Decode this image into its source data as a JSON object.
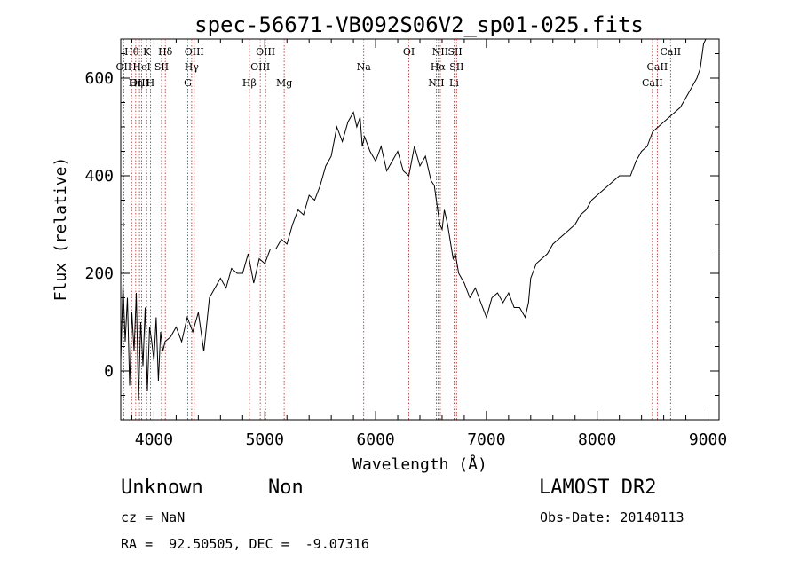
{
  "chart_data": {
    "type": "line",
    "title": "spec-56671-VB092S06V2_sp01-025.fits",
    "xlabel": "Wavelength (Å)",
    "ylabel": "Flux (relative)",
    "xlim": [
      3700,
      9100
    ],
    "ylim": [
      -100,
      680
    ],
    "xticks": [
      4000,
      5000,
      6000,
      7000,
      8000,
      9000
    ],
    "yticks": [
      0,
      200,
      400,
      600
    ],
    "line_color": "#000000",
    "marker_color": "#b22222",
    "series": [
      {
        "x": [
          3700,
          3720,
          3740,
          3760,
          3780,
          3800,
          3820,
          3840,
          3860,
          3880,
          3900,
          3920,
          3940,
          3960,
          3980,
          4000,
          4020,
          4040,
          4060,
          4080,
          4100,
          4150,
          4200,
          4250,
          4300,
          4350,
          4400,
          4450,
          4500,
          4550,
          4600,
          4650,
          4700,
          4750,
          4800,
          4850,
          4900,
          4950,
          5000,
          5050,
          5100,
          5150,
          5200,
          5250,
          5300,
          5350,
          5400,
          5450,
          5500,
          5550,
          5600,
          5650,
          5700,
          5750,
          5800,
          5830,
          5860,
          5880,
          5900,
          5950,
          6000,
          6050,
          6100,
          6150,
          6200,
          6250,
          6300,
          6350,
          6400,
          6450,
          6500,
          6530,
          6560,
          6580,
          6600,
          6620,
          6650,
          6700,
          6720,
          6750,
          6800,
          6850,
          6900,
          6950,
          7000,
          7050,
          7100,
          7150,
          7200,
          7250,
          7300,
          7350,
          7380,
          7400,
          7450,
          7500,
          7550,
          7600,
          7650,
          7700,
          7750,
          7800,
          7850,
          7900,
          7950,
          8000,
          8050,
          8100,
          8150,
          8200,
          8250,
          8300,
          8350,
          8400,
          8450,
          8500,
          8550,
          8600,
          8650,
          8700,
          8750,
          8800,
          8850,
          8900,
          8930,
          8960,
          8980
        ],
        "y": [
          20,
          180,
          60,
          150,
          -30,
          120,
          40,
          160,
          -60,
          100,
          10,
          130,
          -40,
          90,
          60,
          20,
          110,
          -20,
          80,
          40,
          60,
          70,
          90,
          60,
          110,
          80,
          120,
          40,
          150,
          170,
          190,
          170,
          210,
          200,
          200,
          240,
          180,
          230,
          220,
          250,
          250,
          270,
          260,
          300,
          330,
          320,
          360,
          350,
          380,
          420,
          440,
          500,
          470,
          510,
          530,
          500,
          520,
          460,
          480,
          450,
          430,
          460,
          410,
          430,
          450,
          410,
          400,
          460,
          420,
          440,
          390,
          380,
          330,
          300,
          290,
          330,
          300,
          230,
          240,
          200,
          180,
          150,
          170,
          140,
          110,
          150,
          160,
          140,
          160,
          130,
          130,
          110,
          140,
          190,
          220,
          230,
          240,
          260,
          270,
          280,
          290,
          300,
          320,
          330,
          350,
          360,
          370,
          380,
          390,
          400,
          400,
          400,
          430,
          450,
          460,
          490,
          500,
          510,
          520,
          530,
          540,
          560,
          580,
          600,
          620,
          670,
          700
        ]
      }
    ],
    "line_markers": [
      {
        "label": "Hθ",
        "wl": 3798,
        "row": 1
      },
      {
        "label": "OII",
        "wl": 3727,
        "row": 2
      },
      {
        "label": "OIII",
        "wl": 3869,
        "row": 3
      },
      {
        "label": "Hη",
        "wl": 3835,
        "row": 3
      },
      {
        "label": "K",
        "wl": 3934,
        "row": 1
      },
      {
        "label": "HeI",
        "wl": 3889,
        "row": 2
      },
      {
        "label": "SII",
        "wl": 4068,
        "row": 2
      },
      {
        "label": "H",
        "wl": 3968,
        "row": 3
      },
      {
        "label": "Hδ",
        "wl": 4102,
        "row": 1
      },
      {
        "label": "OIII",
        "wl": 4363,
        "row": 1
      },
      {
        "label": "Hγ",
        "wl": 4340,
        "row": 2
      },
      {
        "label": "G",
        "wl": 4305,
        "row": 3
      },
      {
        "label": "OIII",
        "wl": 5007,
        "row": 1
      },
      {
        "label": "OIII",
        "wl": 4959,
        "row": 2
      },
      {
        "label": "Hβ",
        "wl": 4861,
        "row": 3
      },
      {
        "label": "Mg",
        "wl": 5175,
        "row": 3
      },
      {
        "label": "Na",
        "wl": 5893,
        "row": 2
      },
      {
        "label": "OI",
        "wl": 6300,
        "row": 1
      },
      {
        "label": "NII",
        "wl": 6584,
        "row": 1
      },
      {
        "label": "SII",
        "wl": 6717,
        "row": 1
      },
      {
        "label": "Hα",
        "wl": 6563,
        "row": 2
      },
      {
        "label": "SII",
        "wl": 6731,
        "row": 2
      },
      {
        "label": "NII",
        "wl": 6548,
        "row": 3
      },
      {
        "label": "Li",
        "wl": 6708,
        "row": 3
      },
      {
        "label": "CaII",
        "wl": 8662,
        "row": 1
      },
      {
        "label": "CaII",
        "wl": 8542,
        "row": 2
      },
      {
        "label": "CaII",
        "wl": 8498,
        "row": 3
      }
    ]
  },
  "info": {
    "class_label": "Unknown",
    "subclass_label": "Non",
    "survey": "LAMOST DR2",
    "cz": "cz = NaN",
    "obs_date": "Obs-Date: 20140113",
    "coords": "RA =  92.50505, DEC =  -9.07316"
  }
}
